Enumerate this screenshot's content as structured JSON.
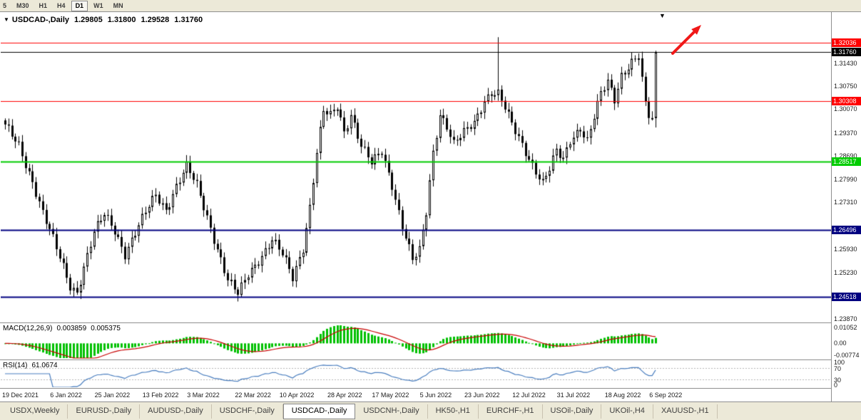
{
  "toolbar": {
    "timeframes": [
      {
        "label": "5",
        "active": false,
        "clipped": true
      },
      {
        "label": "M30",
        "active": false,
        "clipped": false
      },
      {
        "label": "H1",
        "active": false,
        "clipped": false
      },
      {
        "label": "H4",
        "active": false,
        "clipped": false
      },
      {
        "label": "D1",
        "active": true,
        "clipped": false
      },
      {
        "label": "W1",
        "active": false,
        "clipped": false
      },
      {
        "label": "MN",
        "active": false,
        "clipped": false
      }
    ]
  },
  "chart": {
    "title_text": "USDCAD-,Daily",
    "ohlc": {
      "open": "1.29805",
      "high": "1.31800",
      "low": "1.29528",
      "close": "1.31760"
    }
  },
  "icons": {
    "triangle_down": "▼"
  },
  "macd": {
    "title": "MACD(12,26,9)",
    "value_main": "0.003859",
    "value_signal": "0.005375",
    "scale": [
      "0.01052",
      "0.00",
      "-0.00774"
    ]
  },
  "rsi": {
    "title": "RSI(14)",
    "value": "61.0674",
    "scale": [
      "100",
      "70",
      "30",
      "0"
    ],
    "levels": [
      70,
      30
    ]
  },
  "tabs": [
    {
      "label": "USDX,Weekly",
      "active": false
    },
    {
      "label": "EURUSD-,Daily",
      "active": false
    },
    {
      "label": "AUDUSD-,Daily",
      "active": false
    },
    {
      "label": "USDCHF-,Daily",
      "active": false
    },
    {
      "label": "USDCAD-,Daily",
      "active": true
    },
    {
      "label": "USDCNH-,Daily",
      "active": false
    },
    {
      "label": "HK50-,H1",
      "active": false
    },
    {
      "label": "EURCHF-,H1",
      "active": false
    },
    {
      "label": "USOil-,Daily",
      "active": false
    },
    {
      "label": "UKOil-,H4",
      "active": false
    },
    {
      "label": "XAUUSD-,H1",
      "active": false
    }
  ],
  "colors": {
    "candle": "#000000",
    "line_red": "#ff0000",
    "line_green": "#00cc00",
    "line_blue": "#000080",
    "current_price": "#000000",
    "macd_hist": "#00c000",
    "macd_signal": "#c80000",
    "rsi_line": "#4a7ebf",
    "arrow": "#f01818"
  },
  "chart_data": {
    "type": "candlestick",
    "symbol": "USDCAD-",
    "period": "Daily",
    "count": 191,
    "price_range": [
      1.2378,
      1.329
    ],
    "price_axis_ticks": [
      "1.31430",
      "1.30750",
      "1.30070",
      "1.29370",
      "1.28690",
      "1.27990",
      "1.27310",
      "1.25930",
      "1.25230",
      "1.23870"
    ],
    "hlines": [
      {
        "price": 1.32036,
        "label": "1.32036",
        "color": "#ff0000",
        "width": 1,
        "current": false
      },
      {
        "price": 1.3176,
        "label": "1.31760",
        "color": "#000000",
        "width": 1,
        "current": true
      },
      {
        "price": 1.30308,
        "label": "1.30308",
        "color": "#ff0000",
        "width": 1,
        "current": false
      },
      {
        "price": 1.28517,
        "label": "1.28517",
        "color": "#00cc00",
        "width": 2,
        "current": false
      },
      {
        "price": 1.26496,
        "label": "1.26496",
        "color": "#000080",
        "width": 2,
        "current": false
      },
      {
        "price": 1.24518,
        "label": "1.24518",
        "color": "#000080",
        "width": 2,
        "current": false
      }
    ],
    "last_candle": {
      "open": 1.29805,
      "high": 1.318,
      "low": 1.29528,
      "close": 1.3176
    },
    "spike": {
      "index": 144,
      "high": 1.322
    },
    "anchors": [
      [
        0,
        1.2955
      ],
      [
        4,
        1.29
      ],
      [
        8,
        1.2795
      ],
      [
        11,
        1.27
      ],
      [
        14,
        1.262
      ],
      [
        17,
        1.254
      ],
      [
        19,
        1.2485
      ],
      [
        21,
        1.2468
      ],
      [
        23,
        1.254
      ],
      [
        26,
        1.264
      ],
      [
        29,
        1.2695
      ],
      [
        32,
        1.265
      ],
      [
        35,
        1.258
      ],
      [
        38,
        1.264
      ],
      [
        41,
        1.27
      ],
      [
        44,
        1.2755
      ],
      [
        47,
        1.2712
      ],
      [
        50,
        1.278
      ],
      [
        53,
        1.2835
      ],
      [
        56,
        1.278
      ],
      [
        59,
        1.269
      ],
      [
        62,
        1.2595
      ],
      [
        65,
        1.25
      ],
      [
        68,
        1.2458
      ],
      [
        71,
        1.252
      ],
      [
        74,
        1.2562
      ],
      [
        78,
        1.262
      ],
      [
        81,
        1.2575
      ],
      [
        84,
        1.2508
      ],
      [
        87,
        1.26
      ],
      [
        89,
        1.272
      ],
      [
        91,
        1.288
      ],
      [
        93,
        1.3
      ],
      [
        95,
        1.2985
      ],
      [
        97,
        1.3015
      ],
      [
        99,
        1.294
      ],
      [
        101,
        1.2995
      ],
      [
        104,
        1.29
      ],
      [
        107,
        1.2845
      ],
      [
        110,
        1.288
      ],
      [
        113,
        1.2785
      ],
      [
        116,
        1.2665
      ],
      [
        119,
        1.256
      ],
      [
        121,
        1.2585
      ],
      [
        123,
        1.27
      ],
      [
        125,
        1.288
      ],
      [
        127,
        1.2995
      ],
      [
        129,
        1.296
      ],
      [
        131,
        1.2905
      ],
      [
        134,
        1.2935
      ],
      [
        137,
        1.2965
      ],
      [
        140,
        1.3035
      ],
      [
        142,
        1.306
      ],
      [
        144,
        1.3055
      ],
      [
        146,
        1.301
      ],
      [
        148,
        1.2958
      ],
      [
        151,
        1.29
      ],
      [
        154,
        1.2845
      ],
      [
        157,
        1.2792
      ],
      [
        159,
        1.283
      ],
      [
        161,
        1.288
      ],
      [
        163,
        1.2855
      ],
      [
        165,
        1.2915
      ],
      [
        168,
        1.2955
      ],
      [
        170,
        1.2915
      ],
      [
        172,
        1.2985
      ],
      [
        174,
        1.305
      ],
      [
        176,
        1.3085
      ],
      [
        178,
        1.3035
      ],
      [
        180,
        1.311
      ],
      [
        183,
        1.315
      ],
      [
        185,
        1.3165
      ],
      [
        186,
        1.309
      ],
      [
        187,
        1.302
      ],
      [
        188,
        1.2985
      ],
      [
        189,
        1.2981
      ],
      [
        190,
        1.3176
      ]
    ],
    "date_labels": [
      {
        "label": "19 Dec 2021",
        "index": 0
      },
      {
        "label": "6 Jan 2022",
        "index": 14
      },
      {
        "label": "25 Jan 2022",
        "index": 27
      },
      {
        "label": "13 Feb 2022",
        "index": 41
      },
      {
        "label": "3 Mar 2022",
        "index": 54
      },
      {
        "label": "22 Mar 2022",
        "index": 68
      },
      {
        "label": "10 Apr 2022",
        "index": 81
      },
      {
        "label": "28 Apr 2022",
        "index": 95
      },
      {
        "label": "17 May 2022",
        "index": 108
      },
      {
        "label": "5 Jun 2022",
        "index": 122
      },
      {
        "label": "23 Jun 2022",
        "index": 135
      },
      {
        "label": "12 Jul 2022",
        "index": 149
      },
      {
        "label": "31 Jul 2022",
        "index": 162
      },
      {
        "label": "18 Aug 2022",
        "index": 176
      },
      {
        "label": "6 Sep 2022",
        "index": 189
      }
    ]
  }
}
